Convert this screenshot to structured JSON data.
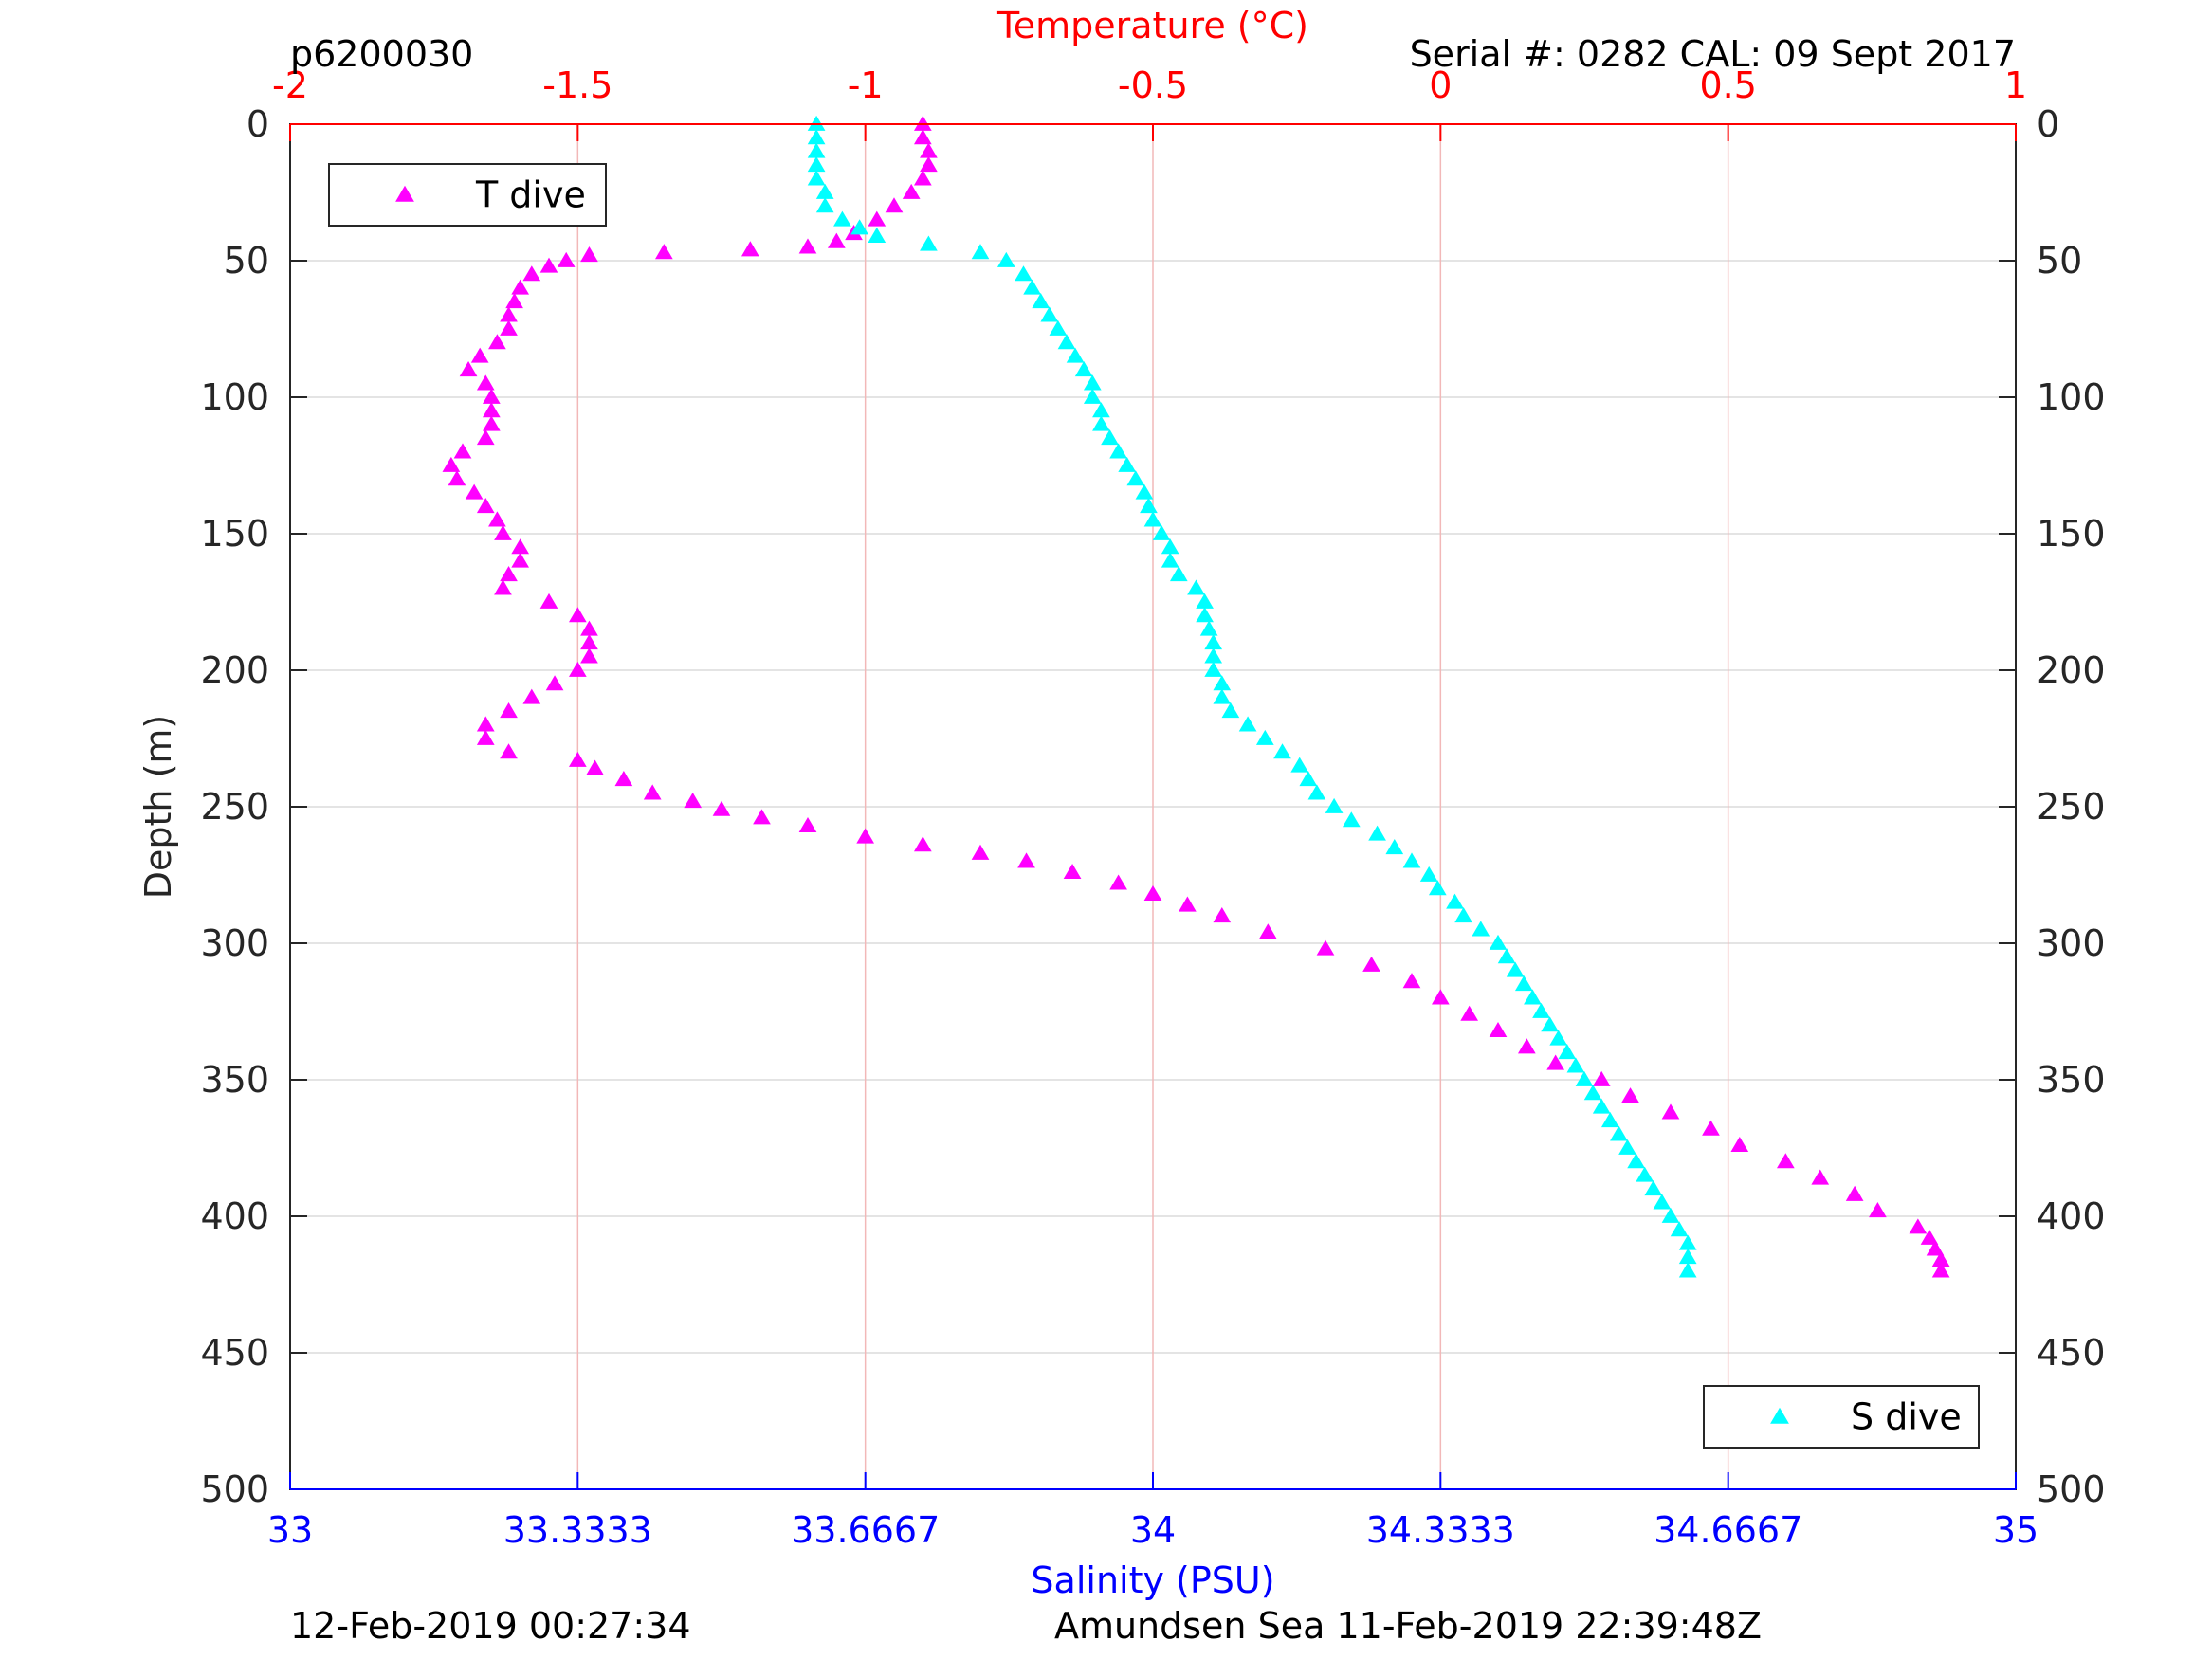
{
  "chart_data": {
    "type": "scatter",
    "annotations": {
      "top_left": "p6200030",
      "top_right": "Serial #: 0282  CAL: 09 Sept 2017",
      "bottom_left": "12-Feb-2019 00:27:34",
      "bottom_right": "Amundsen Sea 11-Feb-2019 22:39:48Z"
    },
    "ylabel": "Depth (m)",
    "ylim": [
      0,
      500
    ],
    "y_reversed": true,
    "y_ticks": [
      0,
      50,
      100,
      150,
      200,
      250,
      300,
      350,
      400,
      450,
      500
    ],
    "x_top": {
      "label": "Temperature (°C)",
      "lim": [
        -2,
        1
      ],
      "ticks": [
        "-2",
        "-1.5",
        "-1",
        "-0.5",
        "0",
        "0.5",
        "1"
      ],
      "color": "#ff0000"
    },
    "x_bottom": {
      "label": "Salinity (PSU)",
      "lim": [
        33,
        35
      ],
      "ticks": [
        "33",
        "33.3333",
        "33.6667",
        "34",
        "34.3333",
        "34.6667",
        "35"
      ],
      "color": "#0000ff"
    },
    "grid": true,
    "series": [
      {
        "name": "T dive",
        "axis": "temperature",
        "marker": "triangle",
        "color": "#ff00ff",
        "legend_position": "top-left",
        "points": [
          [
            -0.9,
            0
          ],
          [
            -0.9,
            5
          ],
          [
            -0.89,
            10
          ],
          [
            -0.89,
            15
          ],
          [
            -0.9,
            20
          ],
          [
            -0.92,
            25
          ],
          [
            -0.95,
            30
          ],
          [
            -0.98,
            35
          ],
          [
            -1.02,
            40
          ],
          [
            -1.05,
            43
          ],
          [
            -1.1,
            45
          ],
          [
            -1.2,
            46
          ],
          [
            -1.35,
            47
          ],
          [
            -1.48,
            48
          ],
          [
            -1.52,
            50
          ],
          [
            -1.55,
            52
          ],
          [
            -1.58,
            55
          ],
          [
            -1.6,
            60
          ],
          [
            -1.61,
            65
          ],
          [
            -1.62,
            70
          ],
          [
            -1.62,
            75
          ],
          [
            -1.64,
            80
          ],
          [
            -1.67,
            85
          ],
          [
            -1.69,
            90
          ],
          [
            -1.66,
            95
          ],
          [
            -1.65,
            100
          ],
          [
            -1.65,
            105
          ],
          [
            -1.65,
            110
          ],
          [
            -1.66,
            115
          ],
          [
            -1.7,
            120
          ],
          [
            -1.72,
            125
          ],
          [
            -1.71,
            130
          ],
          [
            -1.68,
            135
          ],
          [
            -1.66,
            140
          ],
          [
            -1.64,
            145
          ],
          [
            -1.63,
            150
          ],
          [
            -1.6,
            155
          ],
          [
            -1.6,
            160
          ],
          [
            -1.62,
            165
          ],
          [
            -1.63,
            170
          ],
          [
            -1.55,
            175
          ],
          [
            -1.5,
            180
          ],
          [
            -1.48,
            185
          ],
          [
            -1.48,
            190
          ],
          [
            -1.48,
            195
          ],
          [
            -1.5,
            200
          ],
          [
            -1.54,
            205
          ],
          [
            -1.58,
            210
          ],
          [
            -1.62,
            215
          ],
          [
            -1.66,
            220
          ],
          [
            -1.66,
            225
          ],
          [
            -1.62,
            230
          ],
          [
            -1.5,
            233
          ],
          [
            -1.47,
            236
          ],
          [
            -1.42,
            240
          ],
          [
            -1.37,
            245
          ],
          [
            -1.3,
            248
          ],
          [
            -1.25,
            251
          ],
          [
            -1.18,
            254
          ],
          [
            -1.1,
            257
          ],
          [
            -1.0,
            261
          ],
          [
            -0.9,
            264
          ],
          [
            -0.8,
            267
          ],
          [
            -0.72,
            270
          ],
          [
            -0.64,
            274
          ],
          [
            -0.56,
            278
          ],
          [
            -0.5,
            282
          ],
          [
            -0.44,
            286
          ],
          [
            -0.38,
            290
          ],
          [
            -0.3,
            296
          ],
          [
            -0.2,
            302
          ],
          [
            -0.12,
            308
          ],
          [
            -0.05,
            314
          ],
          [
            0.0,
            320
          ],
          [
            0.05,
            326
          ],
          [
            0.1,
            332
          ],
          [
            0.15,
            338
          ],
          [
            0.2,
            344
          ],
          [
            0.28,
            350
          ],
          [
            0.33,
            356
          ],
          [
            0.4,
            362
          ],
          [
            0.47,
            368
          ],
          [
            0.52,
            374
          ],
          [
            0.6,
            380
          ],
          [
            0.66,
            386
          ],
          [
            0.72,
            392
          ],
          [
            0.76,
            398
          ],
          [
            0.83,
            404
          ],
          [
            0.85,
            408
          ],
          [
            0.86,
            412
          ],
          [
            0.87,
            416
          ],
          [
            0.87,
            420
          ]
        ]
      },
      {
        "name": "S dive",
        "axis": "salinity",
        "marker": "triangle",
        "color": "#00ffff",
        "legend_position": "bottom-right",
        "points": [
          [
            33.61,
            0
          ],
          [
            33.61,
            5
          ],
          [
            33.61,
            10
          ],
          [
            33.61,
            15
          ],
          [
            33.61,
            20
          ],
          [
            33.62,
            25
          ],
          [
            33.62,
            30
          ],
          [
            33.64,
            35
          ],
          [
            33.66,
            38
          ],
          [
            33.68,
            41
          ],
          [
            33.74,
            44
          ],
          [
            33.8,
            47
          ],
          [
            33.83,
            50
          ],
          [
            33.85,
            55
          ],
          [
            33.86,
            60
          ],
          [
            33.87,
            65
          ],
          [
            33.88,
            70
          ],
          [
            33.89,
            75
          ],
          [
            33.9,
            80
          ],
          [
            33.91,
            85
          ],
          [
            33.92,
            90
          ],
          [
            33.93,
            95
          ],
          [
            33.93,
            100
          ],
          [
            33.94,
            105
          ],
          [
            33.94,
            110
          ],
          [
            33.95,
            115
          ],
          [
            33.96,
            120
          ],
          [
            33.97,
            125
          ],
          [
            33.98,
            130
          ],
          [
            33.99,
            135
          ],
          [
            33.995,
            140
          ],
          [
            34.0,
            145
          ],
          [
            34.01,
            150
          ],
          [
            34.02,
            155
          ],
          [
            34.02,
            160
          ],
          [
            34.03,
            165
          ],
          [
            34.05,
            170
          ],
          [
            34.06,
            175
          ],
          [
            34.06,
            180
          ],
          [
            34.065,
            185
          ],
          [
            34.07,
            190
          ],
          [
            34.07,
            195
          ],
          [
            34.07,
            200
          ],
          [
            34.08,
            205
          ],
          [
            34.08,
            210
          ],
          [
            34.09,
            215
          ],
          [
            34.11,
            220
          ],
          [
            34.13,
            225
          ],
          [
            34.15,
            230
          ],
          [
            34.17,
            235
          ],
          [
            34.18,
            240
          ],
          [
            34.19,
            245
          ],
          [
            34.21,
            250
          ],
          [
            34.23,
            255
          ],
          [
            34.26,
            260
          ],
          [
            34.28,
            265
          ],
          [
            34.3,
            270
          ],
          [
            34.32,
            275
          ],
          [
            34.33,
            280
          ],
          [
            34.35,
            285
          ],
          [
            34.36,
            290
          ],
          [
            34.38,
            295
          ],
          [
            34.4,
            300
          ],
          [
            34.41,
            305
          ],
          [
            34.42,
            310
          ],
          [
            34.43,
            315
          ],
          [
            34.44,
            320
          ],
          [
            34.45,
            325
          ],
          [
            34.46,
            330
          ],
          [
            34.47,
            335
          ],
          [
            34.48,
            340
          ],
          [
            34.49,
            345
          ],
          [
            34.5,
            350
          ],
          [
            34.51,
            355
          ],
          [
            34.52,
            360
          ],
          [
            34.53,
            365
          ],
          [
            34.54,
            370
          ],
          [
            34.55,
            375
          ],
          [
            34.56,
            380
          ],
          [
            34.57,
            385
          ],
          [
            34.58,
            390
          ],
          [
            34.59,
            395
          ],
          [
            34.6,
            400
          ],
          [
            34.61,
            405
          ],
          [
            34.62,
            410
          ],
          [
            34.62,
            415
          ],
          [
            34.62,
            420
          ]
        ]
      }
    ]
  }
}
